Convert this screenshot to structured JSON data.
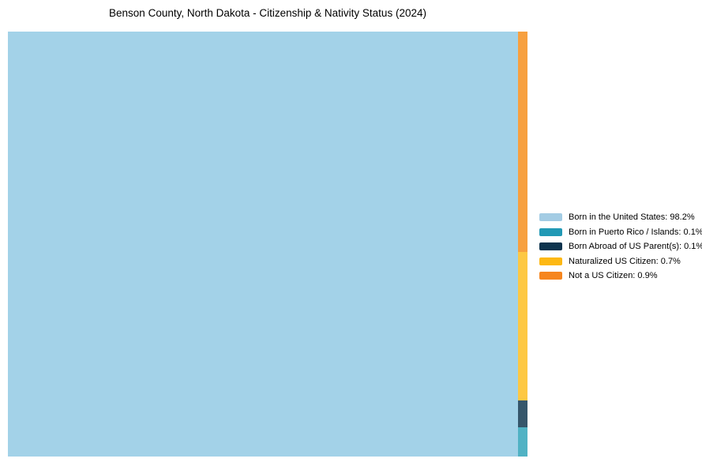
{
  "title": "Benson County, North Dakota - Citizenship & Nativity Status (2024)",
  "chart_data": {
    "type": "treemap",
    "title": "Benson County, North Dakota - Citizenship & Nativity Status (2024)",
    "unit": "%",
    "legend_position": "right",
    "categories": [
      "Born in the United States",
      "Born in Puerto Rico / Islands",
      "Born Abroad of US Parent(s)",
      "Naturalized US Citizen",
      "Not a US Citizen"
    ],
    "values": [
      98.2,
      0.1,
      0.1,
      0.7,
      0.9
    ],
    "layout_note": "single dominant rectangle on left; remaining categories stacked in a thin right-hand column ordered top-to-bottom: Not a US Citizen, Naturalized US Citizen, Born Abroad of US Parent(s), Born in Puerto Rico / Islands"
  },
  "treemap": {
    "segments": {
      "born_us": {
        "name": "Born in the United States",
        "color": "#a3d2e8"
      },
      "not_citizen": {
        "name": "Not a US Citizen",
        "color": "#f7a03f"
      },
      "naturalized": {
        "name": "Naturalized US Citizen",
        "color": "#fdc843"
      },
      "born_abroad": {
        "name": "Born Abroad of US Parent(s)",
        "color": "#35566b"
      },
      "puerto_rico": {
        "name": "Born in Puerto Rico / Islands",
        "color": "#50b2c4"
      }
    }
  },
  "legend": {
    "items": [
      {
        "label": "Born in the United States: 98.2%",
        "color": "#a3cce4"
      },
      {
        "label": "Born in Puerto Rico / Islands: 0.1%",
        "color": "#2299b5"
      },
      {
        "label": "Born Abroad of US Parent(s): 0.1%",
        "color": "#0d344e"
      },
      {
        "label": "Naturalized US Citizen: 0.7%",
        "color": "#fdb813"
      },
      {
        "label": "Not a US Citizen: 0.9%",
        "color": "#f6861f"
      }
    ]
  }
}
